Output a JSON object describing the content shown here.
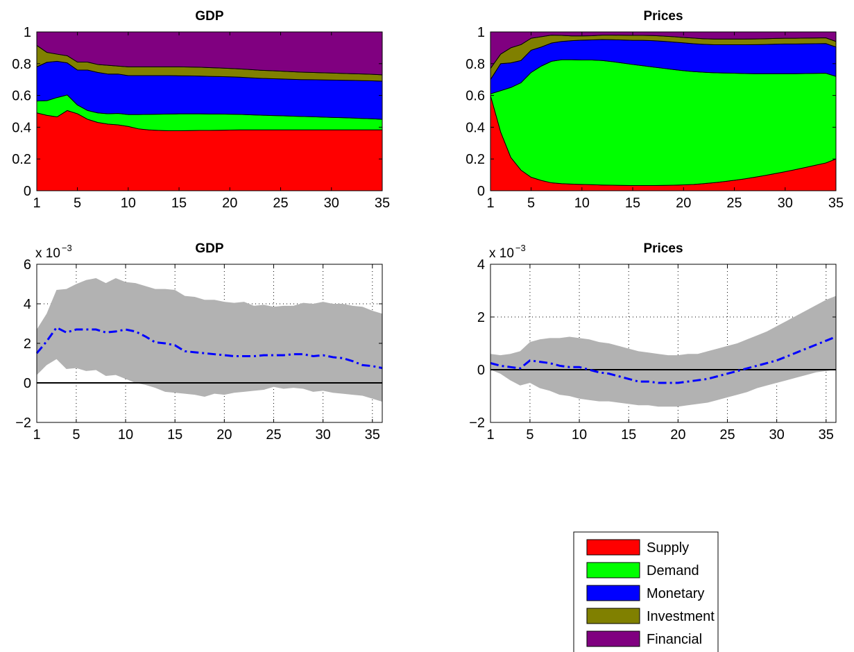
{
  "chart_data": [
    {
      "type": "area",
      "stacked": true,
      "title": "GDP",
      "x": [
        1,
        2,
        3,
        4,
        5,
        6,
        7,
        8,
        9,
        10,
        11,
        12,
        13,
        14,
        15,
        16,
        17,
        18,
        19,
        20,
        21,
        22,
        23,
        24,
        25,
        26,
        27,
        28,
        29,
        30,
        31,
        32,
        33,
        34,
        35
      ],
      "xticks": [
        1,
        5,
        10,
        15,
        20,
        25,
        30,
        35
      ],
      "xlim": [
        1,
        35
      ],
      "ylim": [
        0,
        1
      ],
      "yticks": [
        0,
        0.2,
        0.4,
        0.6,
        0.8,
        1
      ],
      "ytick_labels": [
        "0",
        "0.2",
        "0.4",
        "0.6",
        "0.8",
        "1"
      ],
      "series": [
        {
          "name": "Supply",
          "color": "#ff0000",
          "values": [
            0.49,
            0.475,
            0.465,
            0.505,
            0.485,
            0.45,
            0.43,
            0.42,
            0.415,
            0.405,
            0.39,
            0.383,
            0.38,
            0.378,
            0.378,
            0.379,
            0.38,
            0.38,
            0.381,
            0.382,
            0.383,
            0.383,
            0.383,
            0.383,
            0.383,
            0.383,
            0.383,
            0.383,
            0.383,
            0.383,
            0.383,
            0.383,
            0.383,
            0.383,
            0.383
          ]
        },
        {
          "name": "Demand",
          "color": "#00ff00",
          "values": [
            0.075,
            0.092,
            0.122,
            0.098,
            0.055,
            0.055,
            0.06,
            0.065,
            0.072,
            0.075,
            0.09,
            0.098,
            0.102,
            0.105,
            0.106,
            0.105,
            0.104,
            0.103,
            0.102,
            0.1,
            0.098,
            0.095,
            0.093,
            0.091,
            0.089,
            0.087,
            0.085,
            0.083,
            0.081,
            0.079,
            0.077,
            0.075,
            0.072,
            0.07,
            0.067
          ]
        },
        {
          "name": "Monetary",
          "color": "#0000ff",
          "values": [
            0.215,
            0.242,
            0.228,
            0.202,
            0.22,
            0.255,
            0.255,
            0.25,
            0.248,
            0.245,
            0.245,
            0.244,
            0.243,
            0.242,
            0.24,
            0.239,
            0.238,
            0.237,
            0.236,
            0.235,
            0.234,
            0.233,
            0.232,
            0.232,
            0.232,
            0.232,
            0.232,
            0.233,
            0.234,
            0.235,
            0.236,
            0.237,
            0.238,
            0.239,
            0.24
          ]
        },
        {
          "name": "Investment",
          "color": "#808000",
          "values": [
            0.135,
            0.062,
            0.045,
            0.045,
            0.05,
            0.05,
            0.05,
            0.055,
            0.05,
            0.055,
            0.055,
            0.055,
            0.055,
            0.055,
            0.056,
            0.056,
            0.056,
            0.055,
            0.054,
            0.053,
            0.052,
            0.052,
            0.051,
            0.05,
            0.049,
            0.048,
            0.047,
            0.046,
            0.045,
            0.044,
            0.043,
            0.042,
            0.042,
            0.041,
            0.04
          ]
        },
        {
          "name": "Financial",
          "color": "#800080",
          "values": [
            0.085,
            0.129,
            0.14,
            0.15,
            0.19,
            0.19,
            0.205,
            0.21,
            0.215,
            0.22,
            0.22,
            0.22,
            0.22,
            0.22,
            0.22,
            0.221,
            0.222,
            0.225,
            0.227,
            0.23,
            0.233,
            0.237,
            0.241,
            0.244,
            0.247,
            0.25,
            0.253,
            0.255,
            0.257,
            0.259,
            0.261,
            0.263,
            0.265,
            0.267,
            0.27
          ]
        }
      ]
    },
    {
      "type": "area",
      "stacked": true,
      "title": "Prices",
      "x": [
        1,
        2,
        3,
        4,
        5,
        6,
        7,
        8,
        9,
        10,
        11,
        12,
        13,
        14,
        15,
        16,
        17,
        18,
        19,
        20,
        21,
        22,
        23,
        24,
        25,
        26,
        27,
        28,
        29,
        30,
        31,
        32,
        33,
        34,
        35
      ],
      "xticks": [
        1,
        5,
        10,
        15,
        20,
        25,
        30,
        35
      ],
      "xlim": [
        1,
        35
      ],
      "ylim": [
        0,
        1
      ],
      "yticks": [
        0,
        0.2,
        0.4,
        0.6,
        0.8,
        1
      ],
      "ytick_labels": [
        "0",
        "0.2",
        "0.4",
        "0.6",
        "0.8",
        "1"
      ],
      "series": [
        {
          "name": "Supply",
          "color": "#ff0000",
          "values": [
            0.6,
            0.37,
            0.21,
            0.13,
            0.085,
            0.065,
            0.05,
            0.045,
            0.042,
            0.04,
            0.038,
            0.036,
            0.035,
            0.034,
            0.033,
            0.033,
            0.033,
            0.034,
            0.035,
            0.037,
            0.04,
            0.045,
            0.051,
            0.058,
            0.066,
            0.075,
            0.085,
            0.096,
            0.108,
            0.12,
            0.133,
            0.147,
            0.161,
            0.175,
            0.2
          ]
        },
        {
          "name": "Demand",
          "color": "#00ff00",
          "values": [
            0.01,
            0.26,
            0.44,
            0.55,
            0.66,
            0.72,
            0.765,
            0.78,
            0.783,
            0.783,
            0.785,
            0.784,
            0.778,
            0.77,
            0.762,
            0.754,
            0.746,
            0.737,
            0.728,
            0.719,
            0.71,
            0.701,
            0.692,
            0.683,
            0.674,
            0.663,
            0.652,
            0.641,
            0.629,
            0.617,
            0.604,
            0.591,
            0.578,
            0.565,
            0.52
          ]
        },
        {
          "name": "Monetary",
          "color": "#0000ff",
          "values": [
            0.09,
            0.17,
            0.155,
            0.14,
            0.14,
            0.12,
            0.115,
            0.115,
            0.12,
            0.125,
            0.127,
            0.132,
            0.138,
            0.145,
            0.152,
            0.16,
            0.166,
            0.17,
            0.173,
            0.175,
            0.176,
            0.176,
            0.176,
            0.178,
            0.179,
            0.181,
            0.183,
            0.184,
            0.186,
            0.187,
            0.187,
            0.187,
            0.187,
            0.187,
            0.185
          ]
        },
        {
          "name": "Investment",
          "color": "#808000",
          "values": [
            0.07,
            0.06,
            0.095,
            0.1,
            0.075,
            0.065,
            0.05,
            0.038,
            0.03,
            0.027,
            0.026,
            0.028,
            0.029,
            0.03,
            0.031,
            0.031,
            0.032,
            0.033,
            0.034,
            0.034,
            0.035,
            0.035,
            0.036,
            0.036,
            0.036,
            0.036,
            0.036,
            0.036,
            0.036,
            0.036,
            0.036,
            0.036,
            0.036,
            0.036,
            0.035
          ]
        },
        {
          "name": "Financial",
          "color": "#800080",
          "values": [
            0.23,
            0.14,
            0.1,
            0.08,
            0.04,
            0.03,
            0.02,
            0.022,
            0.025,
            0.025,
            0.024,
            0.02,
            0.02,
            0.021,
            0.022,
            0.022,
            0.023,
            0.026,
            0.03,
            0.035,
            0.039,
            0.043,
            0.045,
            0.045,
            0.045,
            0.045,
            0.044,
            0.043,
            0.041,
            0.04,
            0.04,
            0.039,
            0.038,
            0.037,
            0.06
          ]
        }
      ]
    },
    {
      "type": "line",
      "title": "GDP",
      "y_multiplier_base": "x 10",
      "y_multiplier_exponent": "−3",
      "x": [
        1,
        2,
        3,
        4,
        5,
        6,
        7,
        8,
        9,
        10,
        11,
        12,
        13,
        14,
        15,
        16,
        17,
        18,
        19,
        20,
        21,
        22,
        23,
        24,
        25,
        26,
        27,
        28,
        29,
        30,
        31,
        32,
        33,
        34,
        35,
        36
      ],
      "xticks": [
        1,
        5,
        10,
        15,
        20,
        25,
        30,
        35
      ],
      "xlim": [
        1,
        36
      ],
      "ylim": [
        -2,
        6
      ],
      "yticks": [
        -2,
        0,
        2,
        4,
        6
      ],
      "ytick_labels": [
        "−2",
        "0",
        "2",
        "4",
        "6"
      ],
      "grid": true,
      "band_color": "#b2b2b2",
      "line_color": "#0000ff",
      "band_upper": [
        2.7,
        3.5,
        4.7,
        4.75,
        5.0,
        5.2,
        5.3,
        5.05,
        5.3,
        5.1,
        5.05,
        4.9,
        4.75,
        4.75,
        4.7,
        4.4,
        4.35,
        4.2,
        4.2,
        4.1,
        4.05,
        4.1,
        3.9,
        3.95,
        3.85,
        3.9,
        3.9,
        4.05,
        4.0,
        4.1,
        4.0,
        4.0,
        3.9,
        3.85,
        3.65,
        3.5
      ],
      "band_lower": [
        0.4,
        0.9,
        1.2,
        0.7,
        0.75,
        0.6,
        0.65,
        0.35,
        0.4,
        0.2,
        0.0,
        -0.1,
        -0.25,
        -0.45,
        -0.5,
        -0.55,
        -0.6,
        -0.7,
        -0.55,
        -0.6,
        -0.5,
        -0.45,
        -0.4,
        -0.35,
        -0.2,
        -0.3,
        -0.25,
        -0.3,
        -0.45,
        -0.4,
        -0.5,
        -0.55,
        -0.6,
        -0.65,
        -0.8,
        -0.95
      ],
      "median": [
        1.5,
        2.1,
        2.8,
        2.55,
        2.7,
        2.7,
        2.7,
        2.55,
        2.6,
        2.7,
        2.6,
        2.35,
        2.05,
        2.0,
        1.9,
        1.6,
        1.55,
        1.5,
        1.45,
        1.4,
        1.35,
        1.35,
        1.35,
        1.4,
        1.4,
        1.4,
        1.45,
        1.45,
        1.35,
        1.4,
        1.3,
        1.25,
        1.1,
        0.9,
        0.85,
        0.75
      ],
      "zero_line": 0
    },
    {
      "type": "line",
      "title": "Prices",
      "y_multiplier_base": "x 10",
      "y_multiplier_exponent": "−3",
      "x": [
        1,
        2,
        3,
        4,
        5,
        6,
        7,
        8,
        9,
        10,
        11,
        12,
        13,
        14,
        15,
        16,
        17,
        18,
        19,
        20,
        21,
        22,
        23,
        24,
        25,
        26,
        27,
        28,
        29,
        30,
        31,
        32,
        33,
        34,
        35,
        36
      ],
      "xticks": [
        1,
        5,
        10,
        15,
        20,
        25,
        30,
        35
      ],
      "xlim": [
        1,
        36
      ],
      "ylim": [
        -2,
        4
      ],
      "yticks": [
        -2,
        0,
        2,
        4
      ],
      "ytick_labels": [
        "−2",
        "0",
        "2",
        "4"
      ],
      "grid": true,
      "band_color": "#b2b2b2",
      "line_color": "#0000ff",
      "band_upper": [
        0.6,
        0.55,
        0.6,
        0.7,
        1.05,
        1.15,
        1.2,
        1.2,
        1.25,
        1.2,
        1.15,
        1.05,
        1.0,
        0.9,
        0.8,
        0.7,
        0.65,
        0.6,
        0.55,
        0.55,
        0.6,
        0.6,
        0.7,
        0.8,
        0.9,
        1.0,
        1.15,
        1.3,
        1.45,
        1.65,
        1.85,
        2.05,
        2.25,
        2.45,
        2.65,
        2.8
      ],
      "band_lower": [
        0.0,
        -0.15,
        -0.4,
        -0.6,
        -0.5,
        -0.7,
        -0.8,
        -0.95,
        -1.0,
        -1.1,
        -1.15,
        -1.2,
        -1.2,
        -1.25,
        -1.3,
        -1.35,
        -1.35,
        -1.4,
        -1.4,
        -1.4,
        -1.35,
        -1.3,
        -1.25,
        -1.15,
        -1.05,
        -0.95,
        -0.85,
        -0.7,
        -0.6,
        -0.5,
        -0.4,
        -0.3,
        -0.2,
        -0.1,
        -0.05,
        0.0
      ],
      "median": [
        0.25,
        0.15,
        0.1,
        0.05,
        0.35,
        0.3,
        0.25,
        0.15,
        0.1,
        0.1,
        0.0,
        -0.1,
        -0.15,
        -0.25,
        -0.35,
        -0.45,
        -0.45,
        -0.5,
        -0.5,
        -0.5,
        -0.45,
        -0.4,
        -0.35,
        -0.25,
        -0.15,
        -0.05,
        0.05,
        0.15,
        0.25,
        0.35,
        0.5,
        0.65,
        0.8,
        0.95,
        1.1,
        1.25
      ],
      "zero_line": 0
    }
  ],
  "legend": {
    "entries": [
      {
        "label": "Supply",
        "color": "#ff0000"
      },
      {
        "label": "Demand",
        "color": "#00ff00"
      },
      {
        "label": "Monetary",
        "color": "#0000ff"
      },
      {
        "label": "Investment",
        "color": "#808000"
      },
      {
        "label": "Financial",
        "color": "#800080"
      }
    ]
  }
}
